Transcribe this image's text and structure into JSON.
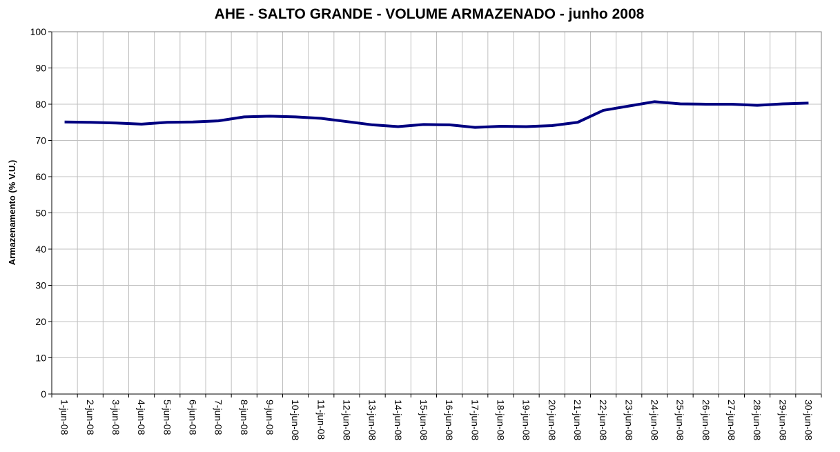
{
  "chart_data": {
    "type": "line",
    "title": "AHE - SALTO GRANDE - VOLUME ARMAZENADO - junho 2008",
    "y_label": "Armazenamento (% V.U.)",
    "categories": [
      "1-jun-08",
      "2-jun-08",
      "3-jun-08",
      "4-jun-08",
      "5-jun-08",
      "6-jun-08",
      "7-jun-08",
      "8-jun-08",
      "9-jun-08",
      "10-jun-08",
      "11-jun-08",
      "12-jun-08",
      "13-jun-08",
      "14-jun-08",
      "15-jun-08",
      "16-jun-08",
      "17-jun-08",
      "18-jun-08",
      "19-jun-08",
      "20-jun-08",
      "21-jun-08",
      "22-jun-08",
      "23-jun-08",
      "24-jun-08",
      "25-jun-08",
      "26-jun-08",
      "27-jun-08",
      "28-jun-08",
      "29-jun-08",
      "30-jun-08"
    ],
    "series": [
      {
        "name": "Armazenamento",
        "color": "#000080",
        "values": [
          75.1,
          75.0,
          74.8,
          74.5,
          75.0,
          75.1,
          75.4,
          76.5,
          76.7,
          76.5,
          76.1,
          75.2,
          74.3,
          73.8,
          74.4,
          74.3,
          73.6,
          73.9,
          73.8,
          74.1,
          75.0,
          78.3,
          79.5,
          80.7,
          80.1,
          80.0,
          80.0,
          79.7,
          80.1,
          80.3
        ]
      }
    ],
    "ylim": [
      0,
      100
    ],
    "yticks": [
      0,
      10,
      20,
      30,
      40,
      50,
      60,
      70,
      80,
      90,
      100
    ],
    "grid": true
  }
}
